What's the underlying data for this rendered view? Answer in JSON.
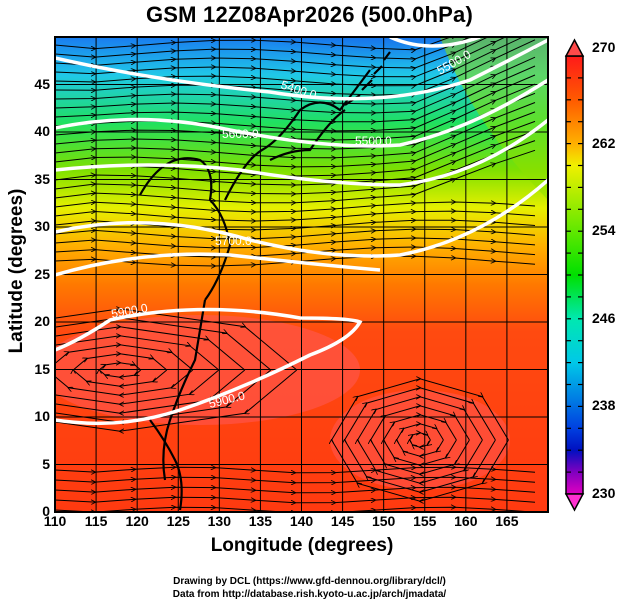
{
  "title": "GSM 12Z08Apr2026 (500.0hPa)",
  "map": {
    "xlabel": "Longitude (degrees)",
    "ylabel": "Latitude  (degrees)",
    "lon_range": [
      110,
      170
    ],
    "lat_range": [
      0,
      50
    ],
    "x_ticks": [
      "110",
      "115",
      "120",
      "125",
      "130",
      "135",
      "140",
      "145",
      "150",
      "155",
      "160",
      "165"
    ],
    "y_ticks": [
      "0",
      "5",
      "10",
      "15",
      "20",
      "25",
      "30",
      "35",
      "40",
      "45"
    ],
    "shading_variable": "temperature",
    "contour_labels": [
      "5400.0",
      "5500.0",
      "5600.0",
      "5700.0",
      "5800.0",
      "5900.0",
      "5900.0"
    ],
    "grid": true
  },
  "colorbar": {
    "min": 230,
    "max": 270,
    "tick_labels": [
      "270",
      "262",
      "254",
      "246",
      "238",
      "230"
    ],
    "colors": {
      "c270": "#ff1a1a",
      "c262": "#f0f000",
      "c254": "#00e000",
      "c246": "#00e0e0",
      "c238": "#0010c0",
      "c230": "#ff00c8"
    }
  },
  "credits": {
    "line1": "Drawing by DCL (https://www.gfd-dennou.org/library/dcl/)",
    "line2": "Data from http://database.rish.kyoto-u.ac.jp/arch/jmadata/"
  }
}
